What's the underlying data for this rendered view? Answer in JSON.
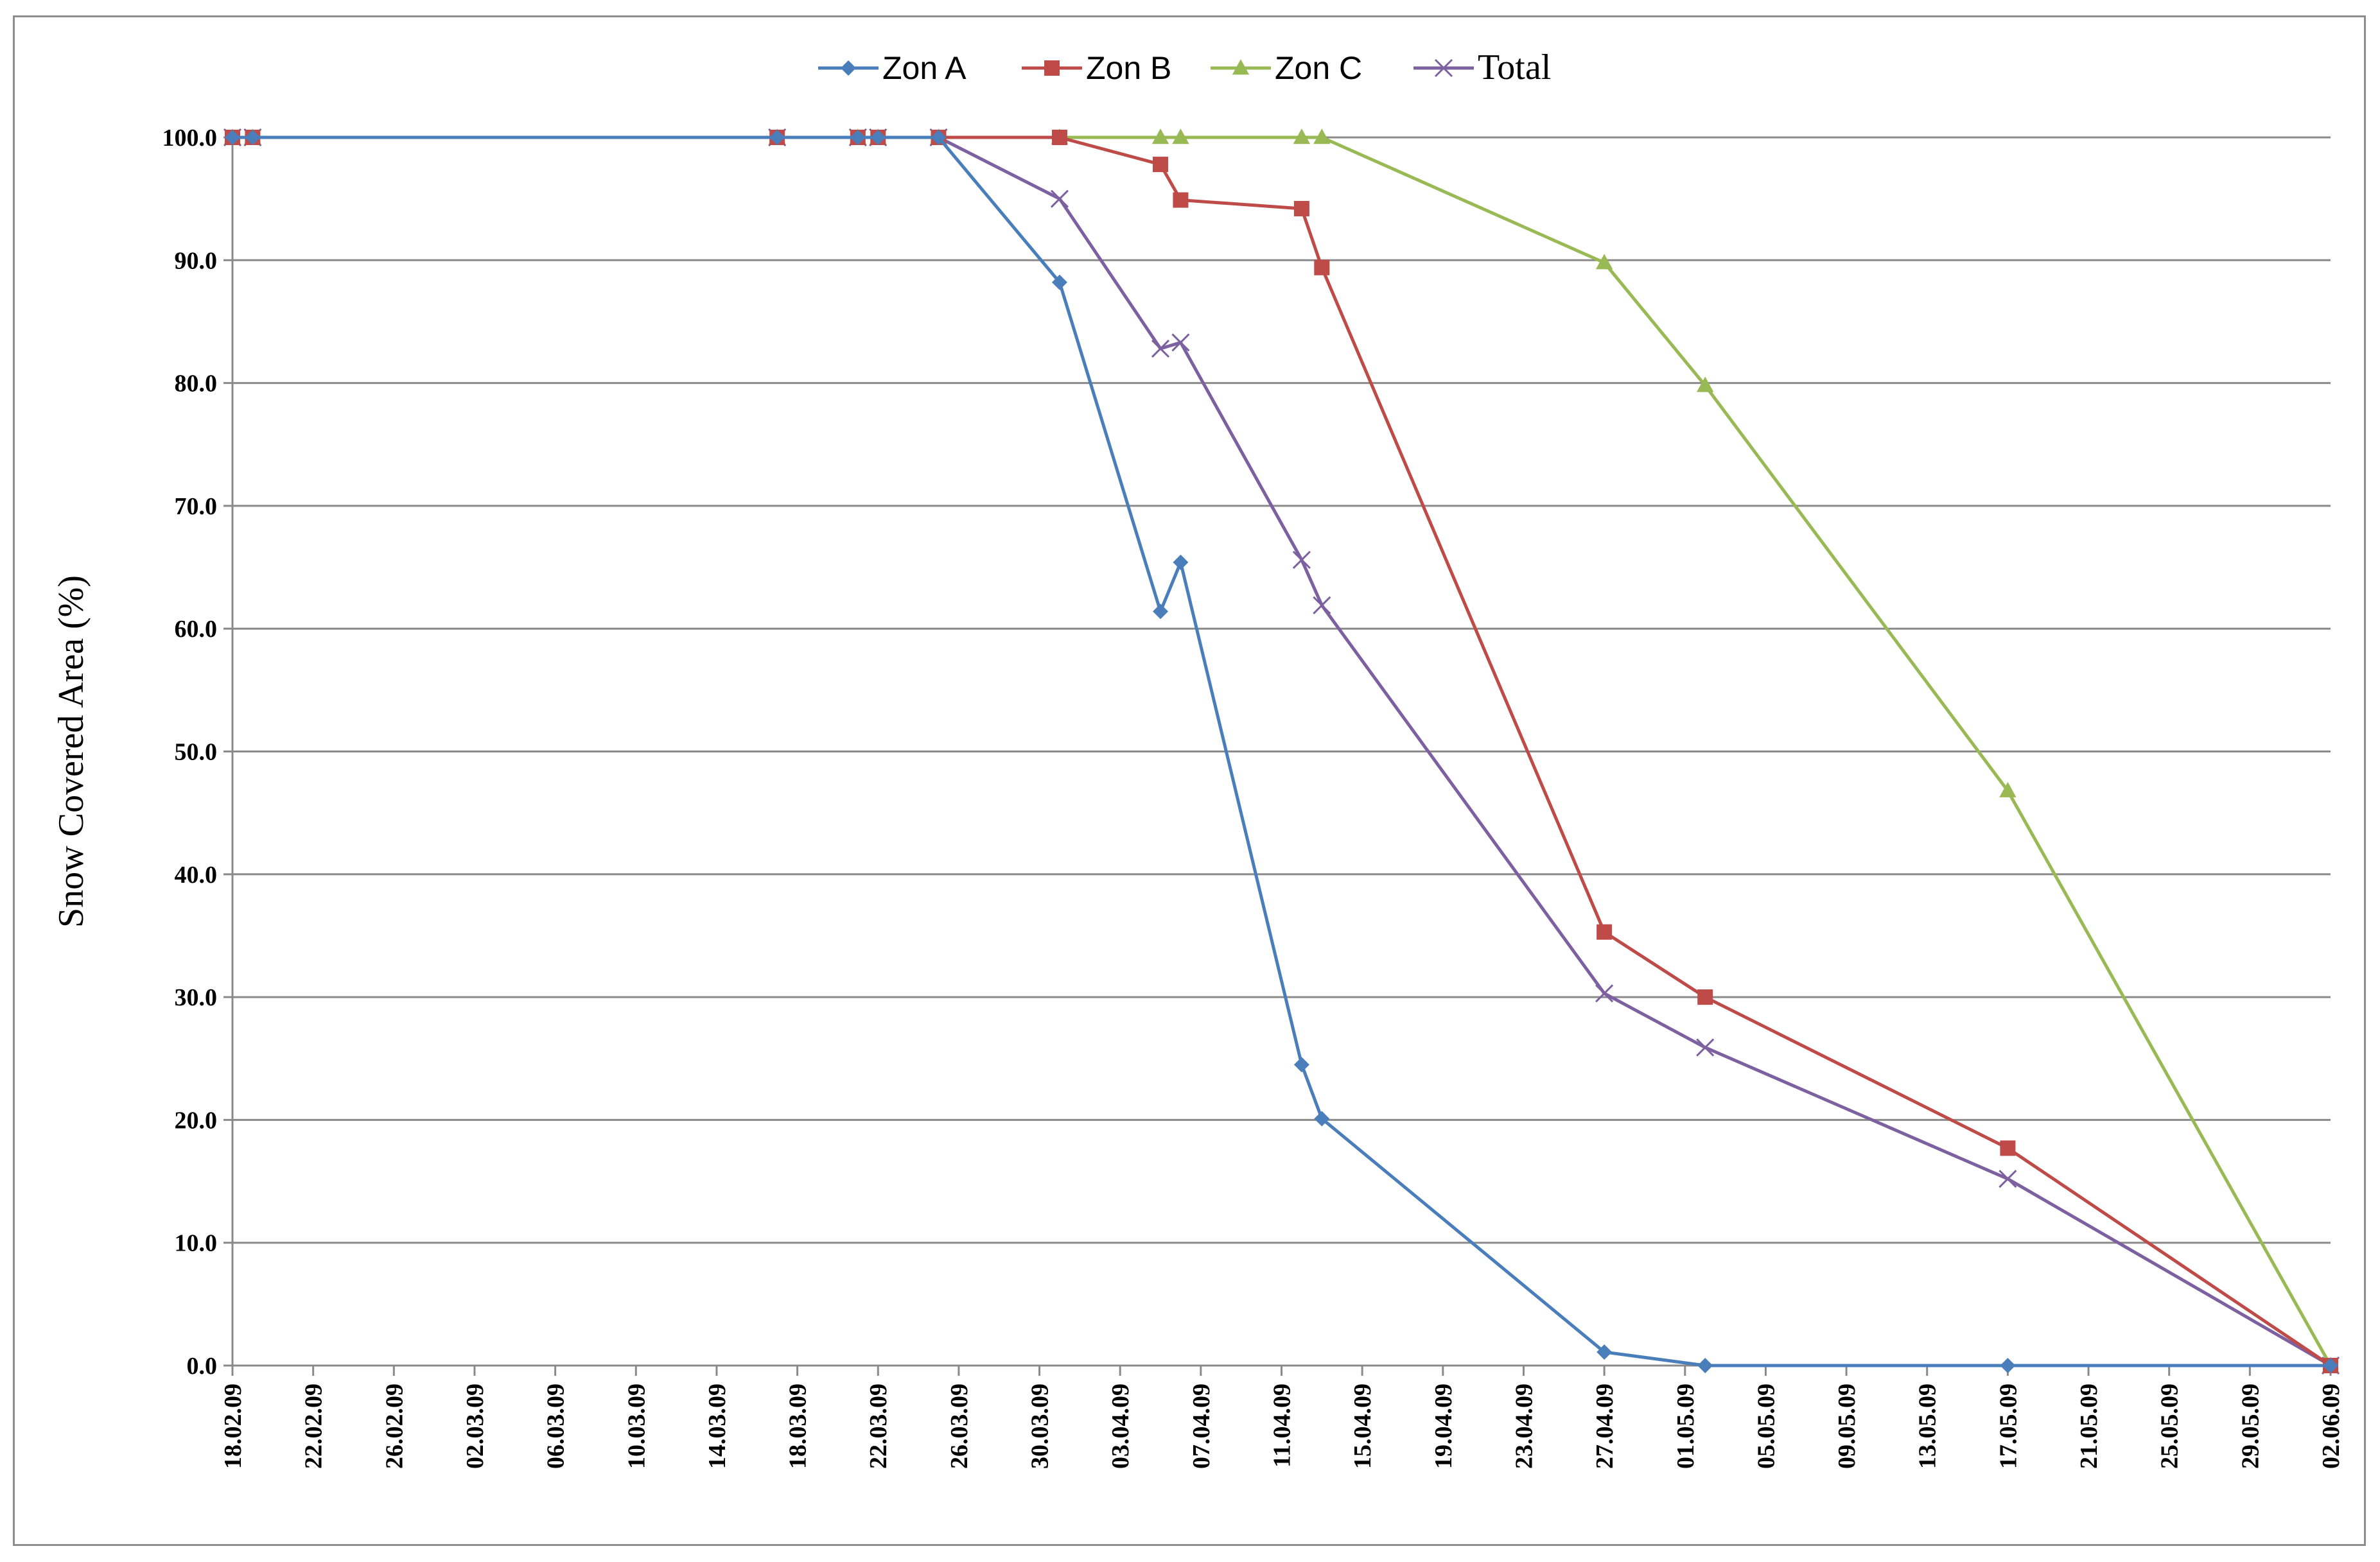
{
  "chart_data": {
    "type": "line",
    "ylabel": "Snow Covered Area (%)",
    "xlabel": "",
    "ylim": [
      0,
      100
    ],
    "y_ticks": [
      "0.0",
      "10.0",
      "20.0",
      "30.0",
      "40.0",
      "50.0",
      "60.0",
      "70.0",
      "80.0",
      "90.0",
      "100.0"
    ],
    "x_ticks": [
      "18.02.09",
      "22.02.09",
      "26.02.09",
      "02.03.09",
      "06.03.09",
      "10.03.09",
      "14.03.09",
      "18.03.09",
      "22.03.09",
      "26.03.09",
      "30.03.09",
      "03.04.09",
      "07.04.09",
      "11.04.09",
      "15.04.09",
      "19.04.09",
      "23.04.09",
      "27.04.09",
      "01.05.09",
      "05.05.09",
      "09.05.09",
      "13.05.09",
      "17.05.09",
      "21.05.09",
      "25.05.09",
      "29.05.09",
      "02.06.09"
    ],
    "x_range": [
      "18.02.09",
      "02.06.09"
    ],
    "grid": "horizontal",
    "legend_position": "top-center",
    "series": [
      {
        "name": "Zon A",
        "color": "#4a7ebb",
        "marker": "diamond",
        "points": [
          [
            "18.02.09",
            100.0
          ],
          [
            "19.02.09",
            100.0
          ],
          [
            "17.03.09",
            100.0
          ],
          [
            "21.03.09",
            100.0
          ],
          [
            "22.03.09",
            100.0
          ],
          [
            "25.03.09",
            100.0
          ],
          [
            "31.03.09",
            88.2
          ],
          [
            "05.04.09",
            61.4
          ],
          [
            "06.04.09",
            65.4
          ],
          [
            "12.04.09",
            24.5
          ],
          [
            "13.04.09",
            20.1
          ],
          [
            "27.04.09",
            1.1
          ],
          [
            "02.05.09",
            0.0
          ],
          [
            "17.05.09",
            0.0
          ],
          [
            "02.06.09",
            0.0
          ]
        ]
      },
      {
        "name": "Zon B",
        "color": "#be4b48",
        "marker": "square",
        "points": [
          [
            "18.02.09",
            100.0
          ],
          [
            "19.02.09",
            100.0
          ],
          [
            "17.03.09",
            100.0
          ],
          [
            "21.03.09",
            100.0
          ],
          [
            "22.03.09",
            100.0
          ],
          [
            "25.03.09",
            100.0
          ],
          [
            "31.03.09",
            100.0
          ],
          [
            "05.04.09",
            97.8
          ],
          [
            "06.04.09",
            94.9
          ],
          [
            "12.04.09",
            94.2
          ],
          [
            "13.04.09",
            89.4
          ],
          [
            "27.04.09",
            35.3
          ],
          [
            "02.05.09",
            30.0
          ],
          [
            "17.05.09",
            17.7
          ],
          [
            "02.06.09",
            0.0
          ]
        ]
      },
      {
        "name": "Zon C",
        "color": "#98b954",
        "marker": "triangle",
        "points": [
          [
            "18.02.09",
            100.0
          ],
          [
            "19.02.09",
            100.0
          ],
          [
            "17.03.09",
            100.0
          ],
          [
            "21.03.09",
            100.0
          ],
          [
            "22.03.09",
            100.0
          ],
          [
            "25.03.09",
            100.0
          ],
          [
            "31.03.09",
            100.0
          ],
          [
            "05.04.09",
            100.0
          ],
          [
            "06.04.09",
            100.0
          ],
          [
            "12.04.09",
            100.0
          ],
          [
            "13.04.09",
            100.0
          ],
          [
            "27.04.09",
            89.8
          ],
          [
            "02.05.09",
            79.8
          ],
          [
            "17.05.09",
            46.8
          ],
          [
            "02.06.09",
            0.0
          ]
        ]
      },
      {
        "name": "Total",
        "color": "#7d60a0",
        "marker": "x",
        "points": [
          [
            "18.02.09",
            100.0
          ],
          [
            "19.02.09",
            100.0
          ],
          [
            "17.03.09",
            100.0
          ],
          [
            "21.03.09",
            100.0
          ],
          [
            "22.03.09",
            100.0
          ],
          [
            "25.03.09",
            100.0
          ],
          [
            "31.03.09",
            95.0
          ],
          [
            "05.04.09",
            82.8
          ],
          [
            "06.04.09",
            83.3
          ],
          [
            "12.04.09",
            65.6
          ],
          [
            "13.04.09",
            61.9
          ],
          [
            "27.04.09",
            30.3
          ],
          [
            "02.05.09",
            25.9
          ],
          [
            "17.05.09",
            15.2
          ],
          [
            "02.06.09",
            0.0
          ]
        ]
      }
    ]
  }
}
